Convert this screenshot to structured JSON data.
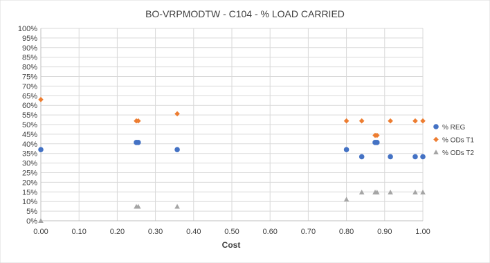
{
  "chart_data": {
    "type": "scatter",
    "title": "BO-VRPMODTW - C104 - % LOAD CARRIED",
    "xlabel": "Cost",
    "ylabel": "",
    "xlim": [
      0,
      1
    ],
    "ylim": [
      0,
      100
    ],
    "x_ticks": [
      "0.00",
      "0.10",
      "0.20",
      "0.30",
      "0.40",
      "0.50",
      "0.60",
      "0.70",
      "0.80",
      "0.90",
      "1.00"
    ],
    "y_ticks": [
      "0%",
      "5%",
      "10%",
      "15%",
      "20%",
      "25%",
      "30%",
      "35%",
      "40%",
      "45%",
      "50%",
      "55%",
      "60%",
      "65%",
      "70%",
      "75%",
      "80%",
      "85%",
      "90%",
      "95%",
      "100%"
    ],
    "grid": true,
    "legend_position": "right",
    "series": [
      {
        "name": "% REG",
        "color": "#4472C4",
        "marker": "circle",
        "points": [
          {
            "x": 0.0,
            "y": 37
          },
          {
            "x": 0.25,
            "y": 40.7
          },
          {
            "x": 0.255,
            "y": 40.7
          },
          {
            "x": 0.357,
            "y": 37
          },
          {
            "x": 0.8,
            "y": 37
          },
          {
            "x": 0.84,
            "y": 33.3
          },
          {
            "x": 0.875,
            "y": 40.7
          },
          {
            "x": 0.88,
            "y": 40.7
          },
          {
            "x": 0.915,
            "y": 33.3
          },
          {
            "x": 0.98,
            "y": 33.3
          },
          {
            "x": 1.0,
            "y": 33.3
          }
        ]
      },
      {
        "name": "% ODs T1",
        "color": "#ED7D31",
        "marker": "diamond",
        "points": [
          {
            "x": 0.0,
            "y": 63
          },
          {
            "x": 0.25,
            "y": 51.9
          },
          {
            "x": 0.255,
            "y": 51.9
          },
          {
            "x": 0.357,
            "y": 55.6
          },
          {
            "x": 0.8,
            "y": 51.9
          },
          {
            "x": 0.84,
            "y": 51.9
          },
          {
            "x": 0.875,
            "y": 44.4
          },
          {
            "x": 0.88,
            "y": 44.4
          },
          {
            "x": 0.915,
            "y": 51.9
          },
          {
            "x": 0.98,
            "y": 51.9
          },
          {
            "x": 1.0,
            "y": 51.9
          }
        ]
      },
      {
        "name": "% ODs T2",
        "color": "#A5A5A5",
        "marker": "triangle",
        "points": [
          {
            "x": 0.0,
            "y": 0
          },
          {
            "x": 0.25,
            "y": 7.4
          },
          {
            "x": 0.255,
            "y": 7.4
          },
          {
            "x": 0.357,
            "y": 7.4
          },
          {
            "x": 0.8,
            "y": 11.1
          },
          {
            "x": 0.84,
            "y": 14.8
          },
          {
            "x": 0.875,
            "y": 14.8
          },
          {
            "x": 0.88,
            "y": 14.8
          },
          {
            "x": 0.915,
            "y": 14.8
          },
          {
            "x": 0.98,
            "y": 14.8
          },
          {
            "x": 1.0,
            "y": 14.8
          }
        ]
      }
    ]
  }
}
